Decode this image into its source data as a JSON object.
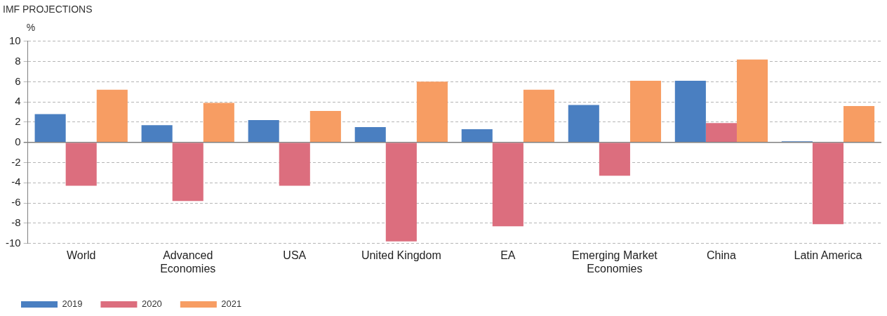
{
  "chart_data": {
    "type": "bar",
    "title": "IMF PROJECTIONS",
    "ylabel": "%",
    "categories": [
      "World",
      "Advanced Economies",
      "USA",
      "United Kingdom",
      "EA",
      "Emerging Market Economies",
      "China",
      "Latin America"
    ],
    "series": [
      {
        "name": "2019",
        "color": "#4a7fc1",
        "values": [
          2.8,
          1.7,
          2.2,
          1.5,
          1.3,
          3.7,
          6.1,
          0.1
        ]
      },
      {
        "name": "2020",
        "color": "#dc6e7e",
        "values": [
          -4.3,
          -5.8,
          -4.3,
          -9.8,
          -8.3,
          -3.3,
          1.9,
          -8.1
        ]
      },
      {
        "name": "2021",
        "color": "#f79d63",
        "values": [
          5.2,
          3.9,
          3.1,
          6.0,
          5.2,
          6.1,
          8.2,
          3.6
        ]
      }
    ],
    "ylim": [
      -10,
      10
    ],
    "yticks": [
      -10,
      -8,
      -6,
      -4,
      -2,
      0,
      2,
      4,
      6,
      8,
      10
    ],
    "grid": "y",
    "legend": "bottom left"
  }
}
